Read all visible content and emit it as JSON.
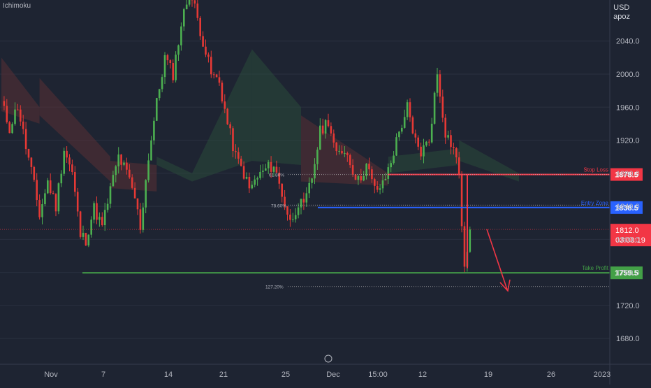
{
  "indicator_label": "Ichimoku",
  "currency": "USD",
  "unit": "apoz",
  "colors": {
    "background": "#1e2432",
    "up": "#4caf50",
    "down": "#e53935",
    "stop_loss": "#f23645",
    "entry": "#2962ff",
    "take_profit": "#43a047",
    "current": "#f23645",
    "axis_text": "#b2b5be",
    "cloud_bear": "#5a2f35",
    "cloud_bull": "#2a4a3a"
  },
  "chart_data": {
    "type": "candlestick",
    "title": "",
    "x_ticks": [
      "Nov",
      "7",
      "14",
      "21",
      "25",
      "Dec",
      "15:00",
      "12",
      "19",
      "26",
      "2023"
    ],
    "y_ticks": [
      2040.0,
      2000.0,
      1960.0,
      1920.0,
      1880.0,
      1840.0,
      1800.0,
      1760.0,
      1720.0,
      1680.0
    ],
    "y_tick_labels": [
      "2040.0",
      "2000.0",
      "1960.0",
      "1920.0",
      "1880.0",
      "1840.0",
      "1800.0",
      "1760.0",
      "1720.0",
      "1680.0"
    ],
    "ylim": [
      1670,
      2110
    ],
    "levels": [
      {
        "name": "Stop Loss",
        "value": 1878.5,
        "label": "1878.5",
        "line_label": "Stop Loss",
        "style": "solid"
      },
      {
        "name": "Entry",
        "value": 1838.5,
        "label": "1838.5",
        "line_label": "Entry Zone",
        "style": "solid"
      },
      {
        "name": "Take Profit",
        "value": 1759.5,
        "label": "1759.5",
        "line_label": "Take Profit",
        "style": "solid"
      }
    ],
    "fib_levels": [
      {
        "label": "61.80%",
        "value": 1878.5
      },
      {
        "label": "78.60%",
        "value": 1841.5
      },
      {
        "label": "127.20%",
        "value": 1743.0
      }
    ],
    "current_price": {
      "value": 1812.0,
      "label": "1812.0",
      "countdown": "03:00:19"
    },
    "price_anchors": [
      [
        0,
        1965
      ],
      [
        3,
        1935
      ],
      [
        6,
        1962
      ],
      [
        9,
        1912
      ],
      [
        11,
        1882
      ],
      [
        14,
        1830
      ],
      [
        17,
        1870
      ],
      [
        20,
        1840
      ],
      [
        23,
        1910
      ],
      [
        26,
        1880
      ],
      [
        29,
        1805
      ],
      [
        31,
        1800
      ],
      [
        34,
        1838
      ],
      [
        37,
        1815
      ],
      [
        40,
        1860
      ],
      [
        43,
        1900
      ],
      [
        46,
        1880
      ],
      [
        49,
        1850
      ],
      [
        51,
        1815
      ],
      [
        54,
        1900
      ],
      [
        57,
        1965
      ],
      [
        60,
        2020
      ],
      [
        63,
        2000
      ],
      [
        66,
        2060
      ],
      [
        69,
        2100
      ],
      [
        71,
        2080
      ],
      [
        74,
        2040
      ],
      [
        77,
        2000
      ],
      [
        80,
        1990
      ],
      [
        83,
        1940
      ],
      [
        86,
        1900
      ],
      [
        89,
        1880
      ],
      [
        91,
        1860
      ],
      [
        94,
        1875
      ],
      [
        97,
        1885
      ],
      [
        100,
        1890
      ],
      [
        103,
        1855
      ],
      [
        106,
        1820
      ],
      [
        109,
        1845
      ],
      [
        111,
        1838
      ],
      [
        114,
        1875
      ],
      [
        117,
        1930
      ],
      [
        120,
        1945
      ],
      [
        123,
        1900
      ],
      [
        126,
        1910
      ],
      [
        129,
        1885
      ],
      [
        131,
        1870
      ],
      [
        134,
        1890
      ],
      [
        137,
        1860
      ],
      [
        140,
        1865
      ],
      [
        143,
        1895
      ],
      [
        146,
        1930
      ],
      [
        149,
        1960
      ],
      [
        151,
        1925
      ],
      [
        154,
        1905
      ],
      [
        157,
        1920
      ],
      [
        160,
        2000
      ],
      [
        163,
        1930
      ],
      [
        166,
        1910
      ],
      [
        168,
        1880
      ],
      [
        169,
        1820
      ],
      [
        170,
        1760
      ],
      [
        171,
        1790
      ],
      [
        172,
        1812
      ]
    ],
    "cloud_segments": [
      {
        "x": [
          0,
          14
        ],
        "top": [
          2020,
          1960
        ],
        "bottom": [
          1955,
          1940
        ],
        "kind": "bear"
      },
      {
        "x": [
          14,
          40
        ],
        "top": [
          1995,
          1900
        ],
        "bottom": [
          1950,
          1870
        ],
        "kind": "bear"
      },
      {
        "x": [
          40,
          57
        ],
        "top": [
          1895,
          1890
        ],
        "bottom": [
          1862,
          1858
        ],
        "kind": "bear"
      },
      {
        "x": [
          57,
          70
        ],
        "top": [
          1900,
          1880
        ],
        "bottom": [
          1890,
          1870
        ],
        "kind": "bull"
      },
      {
        "x": [
          70,
          92
        ],
        "top": [
          1880,
          2030
        ],
        "bottom": [
          1870,
          1895
        ],
        "kind": "bull"
      },
      {
        "x": [
          92,
          110
        ],
        "top": [
          2030,
          1960
        ],
        "bottom": [
          1895,
          1890
        ],
        "kind": "bull"
      },
      {
        "x": [
          110,
          142
        ],
        "top": [
          1950,
          1880
        ],
        "bottom": [
          1870,
          1865
        ],
        "kind": "bear"
      },
      {
        "x": [
          142,
          168
        ],
        "top": [
          1900,
          1910
        ],
        "bottom": [
          1880,
          1890
        ],
        "kind": "bull"
      },
      {
        "x": [
          168,
          190
        ],
        "top": [
          1920,
          1880
        ],
        "bottom": [
          1895,
          1870
        ],
        "kind": "bull"
      }
    ]
  }
}
